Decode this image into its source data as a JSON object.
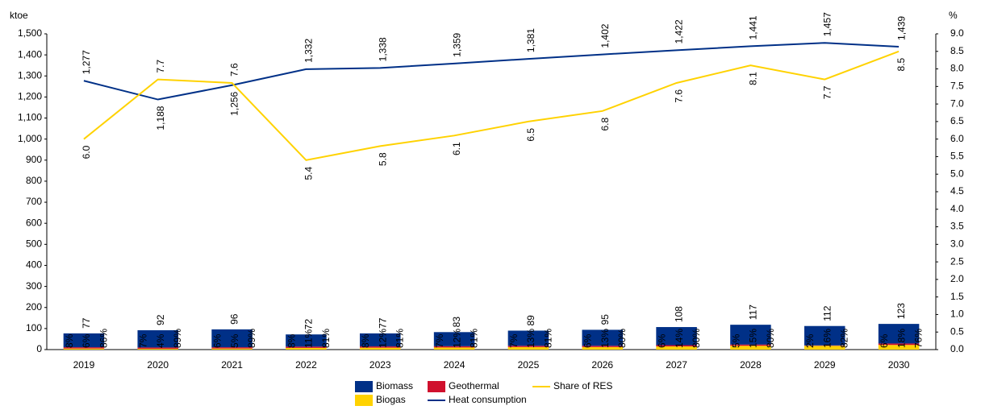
{
  "chart_data": {
    "type": "bar-line",
    "y_label": "ktoe",
    "y2_label": "%",
    "categories": [
      "2019",
      "2020",
      "2021",
      "2022",
      "2023",
      "2024",
      "2025",
      "2026",
      "2027",
      "2028",
      "2029",
      "2030"
    ],
    "series": [
      {
        "name": "Biogas",
        "color": "#ffd200",
        "kind": "bar",
        "values": [
          5,
          4,
          5,
          8,
          9,
          10,
          12,
          12,
          15,
          18,
          18,
          22
        ],
        "share_labels": [
          "6%",
          "4%",
          "5%",
          "11%",
          "12%",
          "12%",
          "13%",
          "13%",
          "14%",
          "15%",
          "16%",
          "18%"
        ]
      },
      {
        "name": "Geothermal",
        "color": "#d0102d",
        "kind": "bar",
        "values": [
          6,
          6,
          6,
          6,
          6,
          6,
          6,
          6,
          6,
          6,
          2,
          7
        ],
        "share_labels": [
          "8%",
          "7%",
          "6%",
          "8%",
          "8%",
          "7%",
          "7%",
          "6%",
          "6%",
          "5%",
          "2%",
          "6%"
        ]
      },
      {
        "name": "Biomass",
        "color": "#003087",
        "kind": "bar",
        "values": [
          66,
          82,
          85,
          58,
          62,
          67,
          72,
          76,
          86,
          94,
          92,
          93
        ],
        "share_labels": [
          "86%",
          "89%",
          "89%",
          "81%",
          "81%",
          "81%",
          "81%",
          "80%",
          "80%",
          "80%",
          "82%",
          "76%"
        ]
      },
      {
        "name": "Heat consumption",
        "color": "#003087",
        "kind": "line",
        "values": [
          1277,
          1188,
          1256,
          1332,
          1338,
          1359,
          1381,
          1402,
          1422,
          1441,
          1457,
          1439
        ],
        "value_labels": [
          "1,277",
          "1,188",
          "1,256",
          "1,332",
          "1,338",
          "1,359",
          "1,381",
          "1,402",
          "1,422",
          "1,441",
          "1,457",
          "1,439"
        ]
      },
      {
        "name": "Share of RES",
        "color": "#ffd200",
        "kind": "line",
        "axis": "y2",
        "values": [
          6.0,
          7.7,
          7.6,
          5.4,
          5.8,
          6.1,
          6.5,
          6.8,
          7.6,
          8.1,
          7.7,
          8.5
        ],
        "value_labels": [
          "6.0",
          "7.7",
          "7.6",
          "5.4",
          "5.8",
          "6.1",
          "6.5",
          "6.8",
          "7.6",
          "8.1",
          "7.7",
          "8.5"
        ]
      }
    ],
    "totals": [
      77,
      92,
      96,
      72,
      77,
      83,
      89,
      95,
      108,
      117,
      112,
      123
    ],
    "ylim": [
      0,
      1500
    ],
    "yticks": [
      0,
      100,
      200,
      300,
      400,
      500,
      600,
      700,
      800,
      900,
      {
        "value": 1000,
        "label": "1,000"
      },
      {
        "value": 1100,
        "label": "1,100"
      },
      {
        "value": 1200,
        "label": "1,200"
      },
      {
        "value": 1300,
        "label": "1,300"
      },
      {
        "value": 1400,
        "label": "1,400"
      },
      {
        "value": 1500,
        "label": "1,500"
      }
    ],
    "y2lim": [
      0,
      9
    ],
    "y2ticks": [
      {
        "value": 0,
        "label": "0.0"
      },
      0.5,
      {
        "value": 1,
        "label": "1.0"
      },
      1.5,
      {
        "value": 2,
        "label": "2.0"
      },
      2.5,
      {
        "value": 3,
        "label": "3.0"
      },
      3.5,
      {
        "value": 4,
        "label": "4.0"
      },
      4.5,
      {
        "value": 5,
        "label": "5.0"
      },
      5.5,
      {
        "value": 6,
        "label": "6.0"
      },
      6.5,
      {
        "value": 7,
        "label": "7.0"
      },
      7.5,
      {
        "value": 8,
        "label": "8.0"
      },
      8.5,
      {
        "value": 9,
        "label": "9.0"
      }
    ],
    "grid": false,
    "legend": "bottom"
  }
}
